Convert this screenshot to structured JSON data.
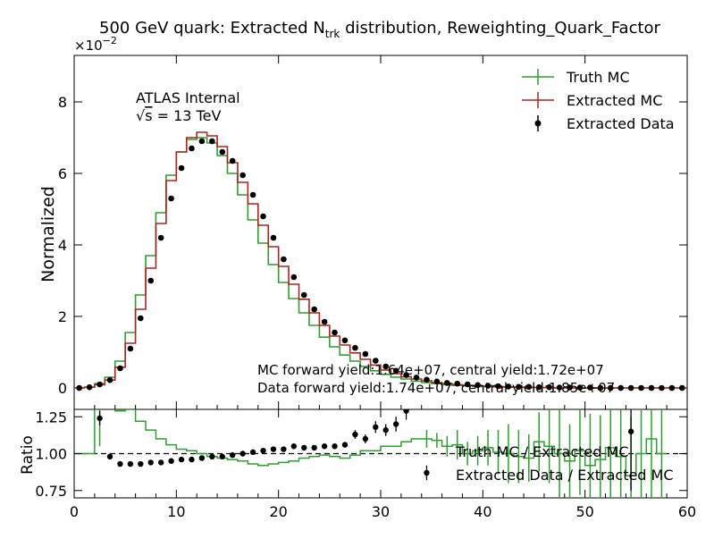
{
  "chart_data": [
    {
      "type": "line",
      "title": "500 GeV quark: Extracted N",
      "title_sub": "trk",
      "title_rest": " distribution, Reweighting_Quark_Factor",
      "ylabel": "Normalized",
      "y_scale_label": "×10",
      "y_scale_exp": "−2",
      "xlim": [
        0,
        60
      ],
      "ylim": [
        -0.6,
        9.3
      ],
      "yticks": [
        0,
        2,
        4,
        6,
        8
      ],
      "grid": false,
      "legend_position": "top-right",
      "annotations": {
        "atlas": "ATLAS Internal",
        "sqrt_s": "s",
        "sqrt_prefix": "√",
        "energy": " = 13 TeV",
        "mc_yield": "MC forward yield:1.64e+07, central yield:1.72e+07",
        "data_yield": "Data forward yield:1.74e+07, central yield:1.85e+07"
      },
      "series": [
        {
          "name": "Truth MC",
          "color": "#2ca02c",
          "style": "step",
          "x": [
            0,
            1,
            2,
            3,
            4,
            5,
            6,
            7,
            8,
            9,
            10,
            11,
            12,
            13,
            14,
            15,
            16,
            17,
            18,
            19,
            20,
            21,
            22,
            23,
            24,
            25,
            26,
            27,
            28,
            29,
            30,
            31,
            32,
            33,
            34,
            35,
            36,
            37,
            38,
            39,
            40,
            41,
            42,
            43,
            44,
            45,
            46,
            47,
            48,
            49,
            50,
            51,
            52,
            53,
            54,
            55,
            56,
            57,
            58,
            59
          ],
          "values": [
            0,
            0.02,
            0.12,
            0.3,
            0.75,
            1.55,
            2.6,
            3.7,
            4.9,
            5.95,
            6.6,
            6.95,
            7.0,
            6.85,
            6.5,
            6.0,
            5.4,
            4.7,
            4.05,
            3.45,
            2.95,
            2.5,
            2.1,
            1.75,
            1.42,
            1.15,
            0.92,
            0.75,
            0.6,
            0.48,
            0.38,
            0.3,
            0.25,
            0.19,
            0.15,
            0.12,
            0.09,
            0.07,
            0.06,
            0.04,
            0.04,
            0.03,
            0.02,
            0.02,
            0.01,
            0.01,
            0.01,
            0,
            0,
            0,
            0,
            0,
            0,
            0,
            0,
            0,
            0,
            0,
            0,
            0
          ]
        },
        {
          "name": "Extracted MC",
          "color": "#b2221e",
          "style": "step",
          "x": [
            0,
            1,
            2,
            3,
            4,
            5,
            6,
            7,
            8,
            9,
            10,
            11,
            12,
            13,
            14,
            15,
            16,
            17,
            18,
            19,
            20,
            21,
            22,
            23,
            24,
            25,
            26,
            27,
            28,
            29,
            30,
            31,
            32,
            33,
            34,
            35,
            36,
            37,
            38,
            39,
            40,
            41,
            42,
            43,
            44,
            45,
            46,
            47,
            48,
            49,
            50,
            51,
            52,
            53,
            54,
            55,
            56,
            57,
            58,
            59
          ],
          "values": [
            0,
            0.02,
            0.09,
            0.22,
            0.58,
            1.25,
            2.2,
            3.35,
            4.6,
            5.8,
            6.6,
            7.0,
            7.15,
            7.05,
            6.75,
            6.3,
            5.75,
            5.15,
            4.55,
            3.95,
            3.4,
            2.9,
            2.48,
            2.1,
            1.75,
            1.45,
            1.2,
            0.98,
            0.8,
            0.64,
            0.5,
            0.4,
            0.31,
            0.25,
            0.2,
            0.15,
            0.12,
            0.09,
            0.07,
            0.06,
            0.05,
            0.04,
            0.03,
            0.02,
            0.02,
            0.01,
            0.01,
            0,
            0,
            0,
            0,
            0,
            0,
            0,
            0,
            0,
            0,
            0,
            0,
            0
          ]
        },
        {
          "name": "Extracted Data",
          "color": "#000000",
          "style": "points",
          "x": [
            0.5,
            1.5,
            2.5,
            3.5,
            4.5,
            5.5,
            6.5,
            7.5,
            8.5,
            9.5,
            10.5,
            11.5,
            12.5,
            13.5,
            14.5,
            15.5,
            16.5,
            17.5,
            18.5,
            19.5,
            20.5,
            21.5,
            22.5,
            23.5,
            24.5,
            25.5,
            26.5,
            27.5,
            28.5,
            29.5,
            30.5,
            31.5,
            32.5,
            33.5,
            34.5,
            35.5,
            36.5,
            37.5,
            38.5,
            39.5,
            40.5,
            41.5,
            42.5,
            43.5,
            44.5,
            45.5,
            46.5,
            47.5,
            48.5,
            49.5,
            50.5,
            51.5,
            52.5,
            53.5,
            54.5,
            55.5,
            56.5,
            57.5,
            58.5,
            59.5
          ],
          "values": [
            0,
            0.02,
            0.1,
            0.22,
            0.55,
            1.1,
            1.95,
            3.0,
            4.2,
            5.3,
            6.15,
            6.7,
            6.9,
            6.9,
            6.6,
            6.35,
            5.95,
            5.4,
            4.8,
            4.2,
            3.6,
            3.1,
            2.6,
            2.2,
            1.85,
            1.55,
            1.33,
            1.12,
            0.95,
            0.76,
            0.6,
            0.48,
            0.36,
            0.29,
            0.23,
            0.18,
            0.14,
            0.12,
            0.1,
            0.08,
            0.06,
            0.05,
            0.04,
            0.03,
            0.03,
            0.02,
            0.02,
            0.01,
            0.01,
            0.01,
            0.01,
            0,
            0,
            0,
            0,
            0,
            0,
            0,
            0,
            0
          ]
        }
      ]
    },
    {
      "type": "line",
      "xlabel": "",
      "ylabel": "Ratio",
      "xlim": [
        0,
        60
      ],
      "ylim": [
        0.7,
        1.3
      ],
      "yticks": [
        0.75,
        1.0,
        1.25
      ],
      "ytick_labels": [
        "0.75",
        "1.00",
        "1.25"
      ],
      "xticks": [
        0,
        10,
        20,
        30,
        40,
        50,
        60
      ],
      "xtick_labels": [
        "0",
        "10",
        "20",
        "30",
        "40",
        "50",
        "60"
      ],
      "reference_line": 1.0,
      "series": [
        {
          "name": "Truth MC / Extracted MC",
          "color": "#2ca02c",
          "style": "step",
          "x": [
            0,
            1,
            2,
            3,
            4,
            5,
            6,
            7,
            8,
            9,
            10,
            11,
            12,
            13,
            14,
            15,
            16,
            17,
            18,
            19,
            20,
            21,
            22,
            23,
            24,
            25,
            26,
            27,
            28,
            29,
            30,
            31,
            32,
            33,
            34,
            35,
            36,
            37,
            38,
            39,
            40,
            41,
            42,
            43,
            44,
            45,
            46,
            47,
            48,
            49,
            50,
            51,
            52,
            53,
            54,
            55,
            56,
            57
          ],
          "values": [
            1.0,
            1.0,
            1.35,
            1.35,
            1.29,
            1.3,
            1.22,
            1.16,
            1.1,
            1.06,
            1.03,
            1.02,
            1.0,
            0.98,
            0.97,
            0.96,
            0.95,
            0.93,
            0.92,
            0.93,
            0.94,
            0.95,
            0.97,
            0.98,
            0.99,
            0.98,
            0.97,
            0.99,
            1.02,
            1.02,
            1.05,
            1.05,
            1.08,
            1.1,
            1.1,
            1.09,
            1.05,
            1.06,
            1.0,
            1.02,
            1.04,
            1.01,
            1.0,
            0.98,
            0.97,
            1.08,
            1.05,
            1.0,
            0.95,
            1.02,
            0.92,
            0.96,
            1.04,
            0.98,
            0.85,
            1.0,
            1.1,
            1.0
          ],
          "errors": [
            0,
            0,
            0.3,
            0,
            0,
            0,
            0,
            0,
            0,
            0,
            0,
            0,
            0,
            0,
            0,
            0,
            0,
            0,
            0,
            0,
            0,
            0,
            0,
            0,
            0,
            0,
            0,
            0,
            0,
            0,
            0,
            0,
            0,
            0,
            0.06,
            0.05,
            0.07,
            0.1,
            0.08,
            0.1,
            0.12,
            0.15,
            0.2,
            0.18,
            0.16,
            0.2,
            0.25,
            0.3,
            0.25,
            0.3,
            0.35,
            0.3,
            0.4,
            0.45,
            0.4,
            0.5,
            0.5,
            0.5
          ]
        },
        {
          "name": "Extracted Data / Extracted MC",
          "color": "#000000",
          "style": "points",
          "x": [
            2.5,
            3.5,
            4.5,
            5.5,
            6.5,
            7.5,
            8.5,
            9.5,
            10.5,
            11.5,
            12.5,
            13.5,
            14.5,
            15.5,
            16.5,
            17.5,
            18.5,
            19.5,
            20.5,
            21.5,
            22.5,
            23.5,
            24.5,
            25.5,
            26.5,
            27.5,
            28.5,
            29.5,
            30.5,
            31.5,
            32.5,
            34.5,
            54.5
          ],
          "values": [
            1.24,
            0.98,
            0.93,
            0.93,
            0.93,
            0.94,
            0.94,
            0.95,
            0.96,
            0.96,
            0.97,
            0.98,
            0.98,
            0.99,
            1.0,
            1.01,
            1.02,
            1.03,
            1.03,
            1.05,
            1.04,
            1.04,
            1.05,
            1.05,
            1.06,
            1.13,
            1.1,
            1.18,
            1.16,
            1.2,
            1.29,
            0.87,
            1.15
          ],
          "errors": [
            0.05,
            0.01,
            0.01,
            0.01,
            0.01,
            0.01,
            0.01,
            0.01,
            0.01,
            0.01,
            0.01,
            0.01,
            0.01,
            0.01,
            0.01,
            0.01,
            0.01,
            0.01,
            0.01,
            0.01,
            0.01,
            0.01,
            0.01,
            0.01,
            0.02,
            0.03,
            0.03,
            0.04,
            0.04,
            0.05,
            0.06,
            0.05,
            0.4
          ]
        }
      ]
    }
  ]
}
